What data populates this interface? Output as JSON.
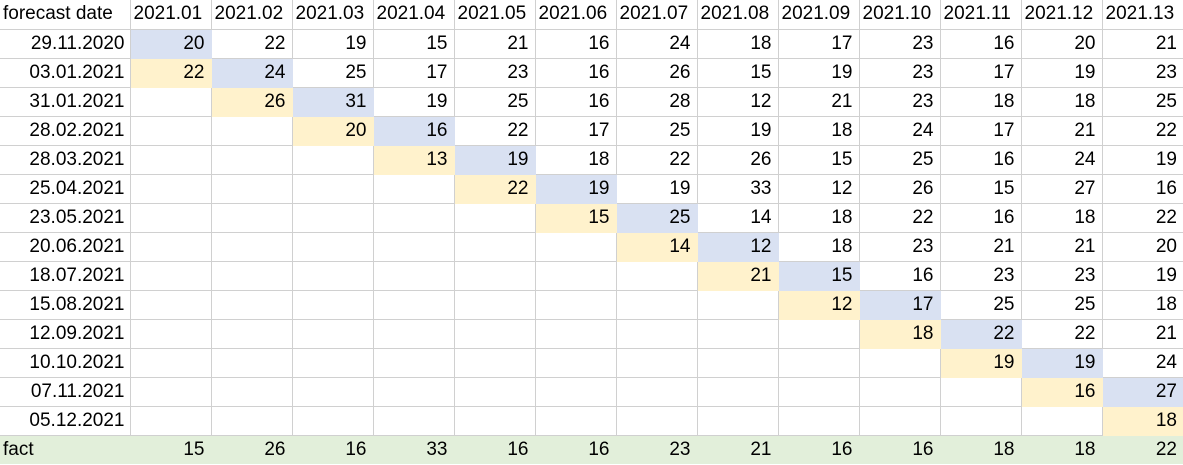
{
  "table": {
    "header_label": "forecast date",
    "columns": [
      "2021.01",
      "2021.02",
      "2021.03",
      "2021.04",
      "2021.05",
      "2021.06",
      "2021.07",
      "2021.08",
      "2021.09",
      "2021.10",
      "2021.11",
      "2021.12",
      "2021.13"
    ],
    "rows": [
      {
        "date": "29.11.2020",
        "values": [
          "20",
          "22",
          "19",
          "15",
          "21",
          "16",
          "24",
          "18",
          "17",
          "23",
          "16",
          "20",
          "21"
        ],
        "yellow_col": null,
        "blue_col": 0
      },
      {
        "date": "03.01.2021",
        "values": [
          "22",
          "24",
          "25",
          "17",
          "23",
          "16",
          "26",
          "15",
          "19",
          "23",
          "17",
          "19",
          "23"
        ],
        "yellow_col": 0,
        "blue_col": 1
      },
      {
        "date": "31.01.2021",
        "values": [
          "",
          "26",
          "31",
          "19",
          "25",
          "16",
          "28",
          "12",
          "21",
          "23",
          "18",
          "18",
          "25"
        ],
        "yellow_col": 1,
        "blue_col": 2
      },
      {
        "date": "28.02.2021",
        "values": [
          "",
          "",
          "20",
          "16",
          "22",
          "17",
          "25",
          "19",
          "18",
          "24",
          "17",
          "21",
          "22"
        ],
        "yellow_col": 2,
        "blue_col": 3
      },
      {
        "date": "28.03.2021",
        "values": [
          "",
          "",
          "",
          "13",
          "19",
          "18",
          "22",
          "26",
          "15",
          "25",
          "16",
          "24",
          "19"
        ],
        "yellow_col": 3,
        "blue_col": 4
      },
      {
        "date": "25.04.2021",
        "values": [
          "",
          "",
          "",
          "",
          "22",
          "19",
          "19",
          "33",
          "12",
          "26",
          "15",
          "27",
          "16"
        ],
        "yellow_col": 4,
        "blue_col": 5
      },
      {
        "date": "23.05.2021",
        "values": [
          "",
          "",
          "",
          "",
          "",
          "15",
          "25",
          "14",
          "18",
          "22",
          "16",
          "18",
          "22"
        ],
        "yellow_col": 5,
        "blue_col": 6
      },
      {
        "date": "20.06.2021",
        "values": [
          "",
          "",
          "",
          "",
          "",
          "",
          "14",
          "12",
          "18",
          "23",
          "21",
          "21",
          "20"
        ],
        "yellow_col": 6,
        "blue_col": 7
      },
      {
        "date": "18.07.2021",
        "values": [
          "",
          "",
          "",
          "",
          "",
          "",
          "",
          "21",
          "15",
          "16",
          "23",
          "23",
          "19"
        ],
        "yellow_col": 7,
        "blue_col": 8
      },
      {
        "date": "15.08.2021",
        "values": [
          "",
          "",
          "",
          "",
          "",
          "",
          "",
          "",
          "12",
          "17",
          "25",
          "25",
          "18"
        ],
        "yellow_col": 8,
        "blue_col": 9
      },
      {
        "date": "12.09.2021",
        "values": [
          "",
          "",
          "",
          "",
          "",
          "",
          "",
          "",
          "",
          "18",
          "22",
          "22",
          "21"
        ],
        "yellow_col": 9,
        "blue_col": 10
      },
      {
        "date": "10.10.2021",
        "values": [
          "",
          "",
          "",
          "",
          "",
          "",
          "",
          "",
          "",
          "",
          "19",
          "19",
          "24"
        ],
        "yellow_col": 10,
        "blue_col": 11
      },
      {
        "date": "07.11.2021",
        "values": [
          "",
          "",
          "",
          "",
          "",
          "",
          "",
          "",
          "",
          "",
          "",
          "16",
          "27"
        ],
        "yellow_col": 11,
        "blue_col": 12
      },
      {
        "date": "05.12.2021",
        "values": [
          "",
          "",
          "",
          "",
          "",
          "",
          "",
          "",
          "",
          "",
          "",
          "",
          "18"
        ],
        "yellow_col": 12,
        "blue_col": null
      }
    ],
    "fact": {
      "label": "fact",
      "values": [
        "15",
        "26",
        "16",
        "33",
        "16",
        "16",
        "23",
        "21",
        "16",
        "16",
        "18",
        "18",
        "22"
      ]
    }
  },
  "colors": {
    "diagonal_forecast_fill": "#d9e1f2",
    "prior_forecast_fill": "#fff2cc",
    "fact_row_fill": "#e2efda",
    "gridline": "#d0d0d0",
    "text": "#000000"
  }
}
